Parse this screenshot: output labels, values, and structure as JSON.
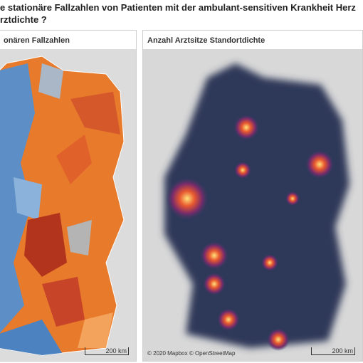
{
  "header": {
    "title_lines": [
      "e stationäre Fallzahlen von Patienten mit der ambulant-sensitiven Krankheit Herz",
      "rztdichte ?"
    ]
  },
  "panels": [
    {
      "title": "onären Fallzahlen",
      "scale_label": "200 km"
    },
    {
      "title": "Anzahl Arztsitze Standortdichte",
      "scale_label": "200 km",
      "attribution": "© 2020 Mapbox © OpenStreetMap"
    }
  ]
}
